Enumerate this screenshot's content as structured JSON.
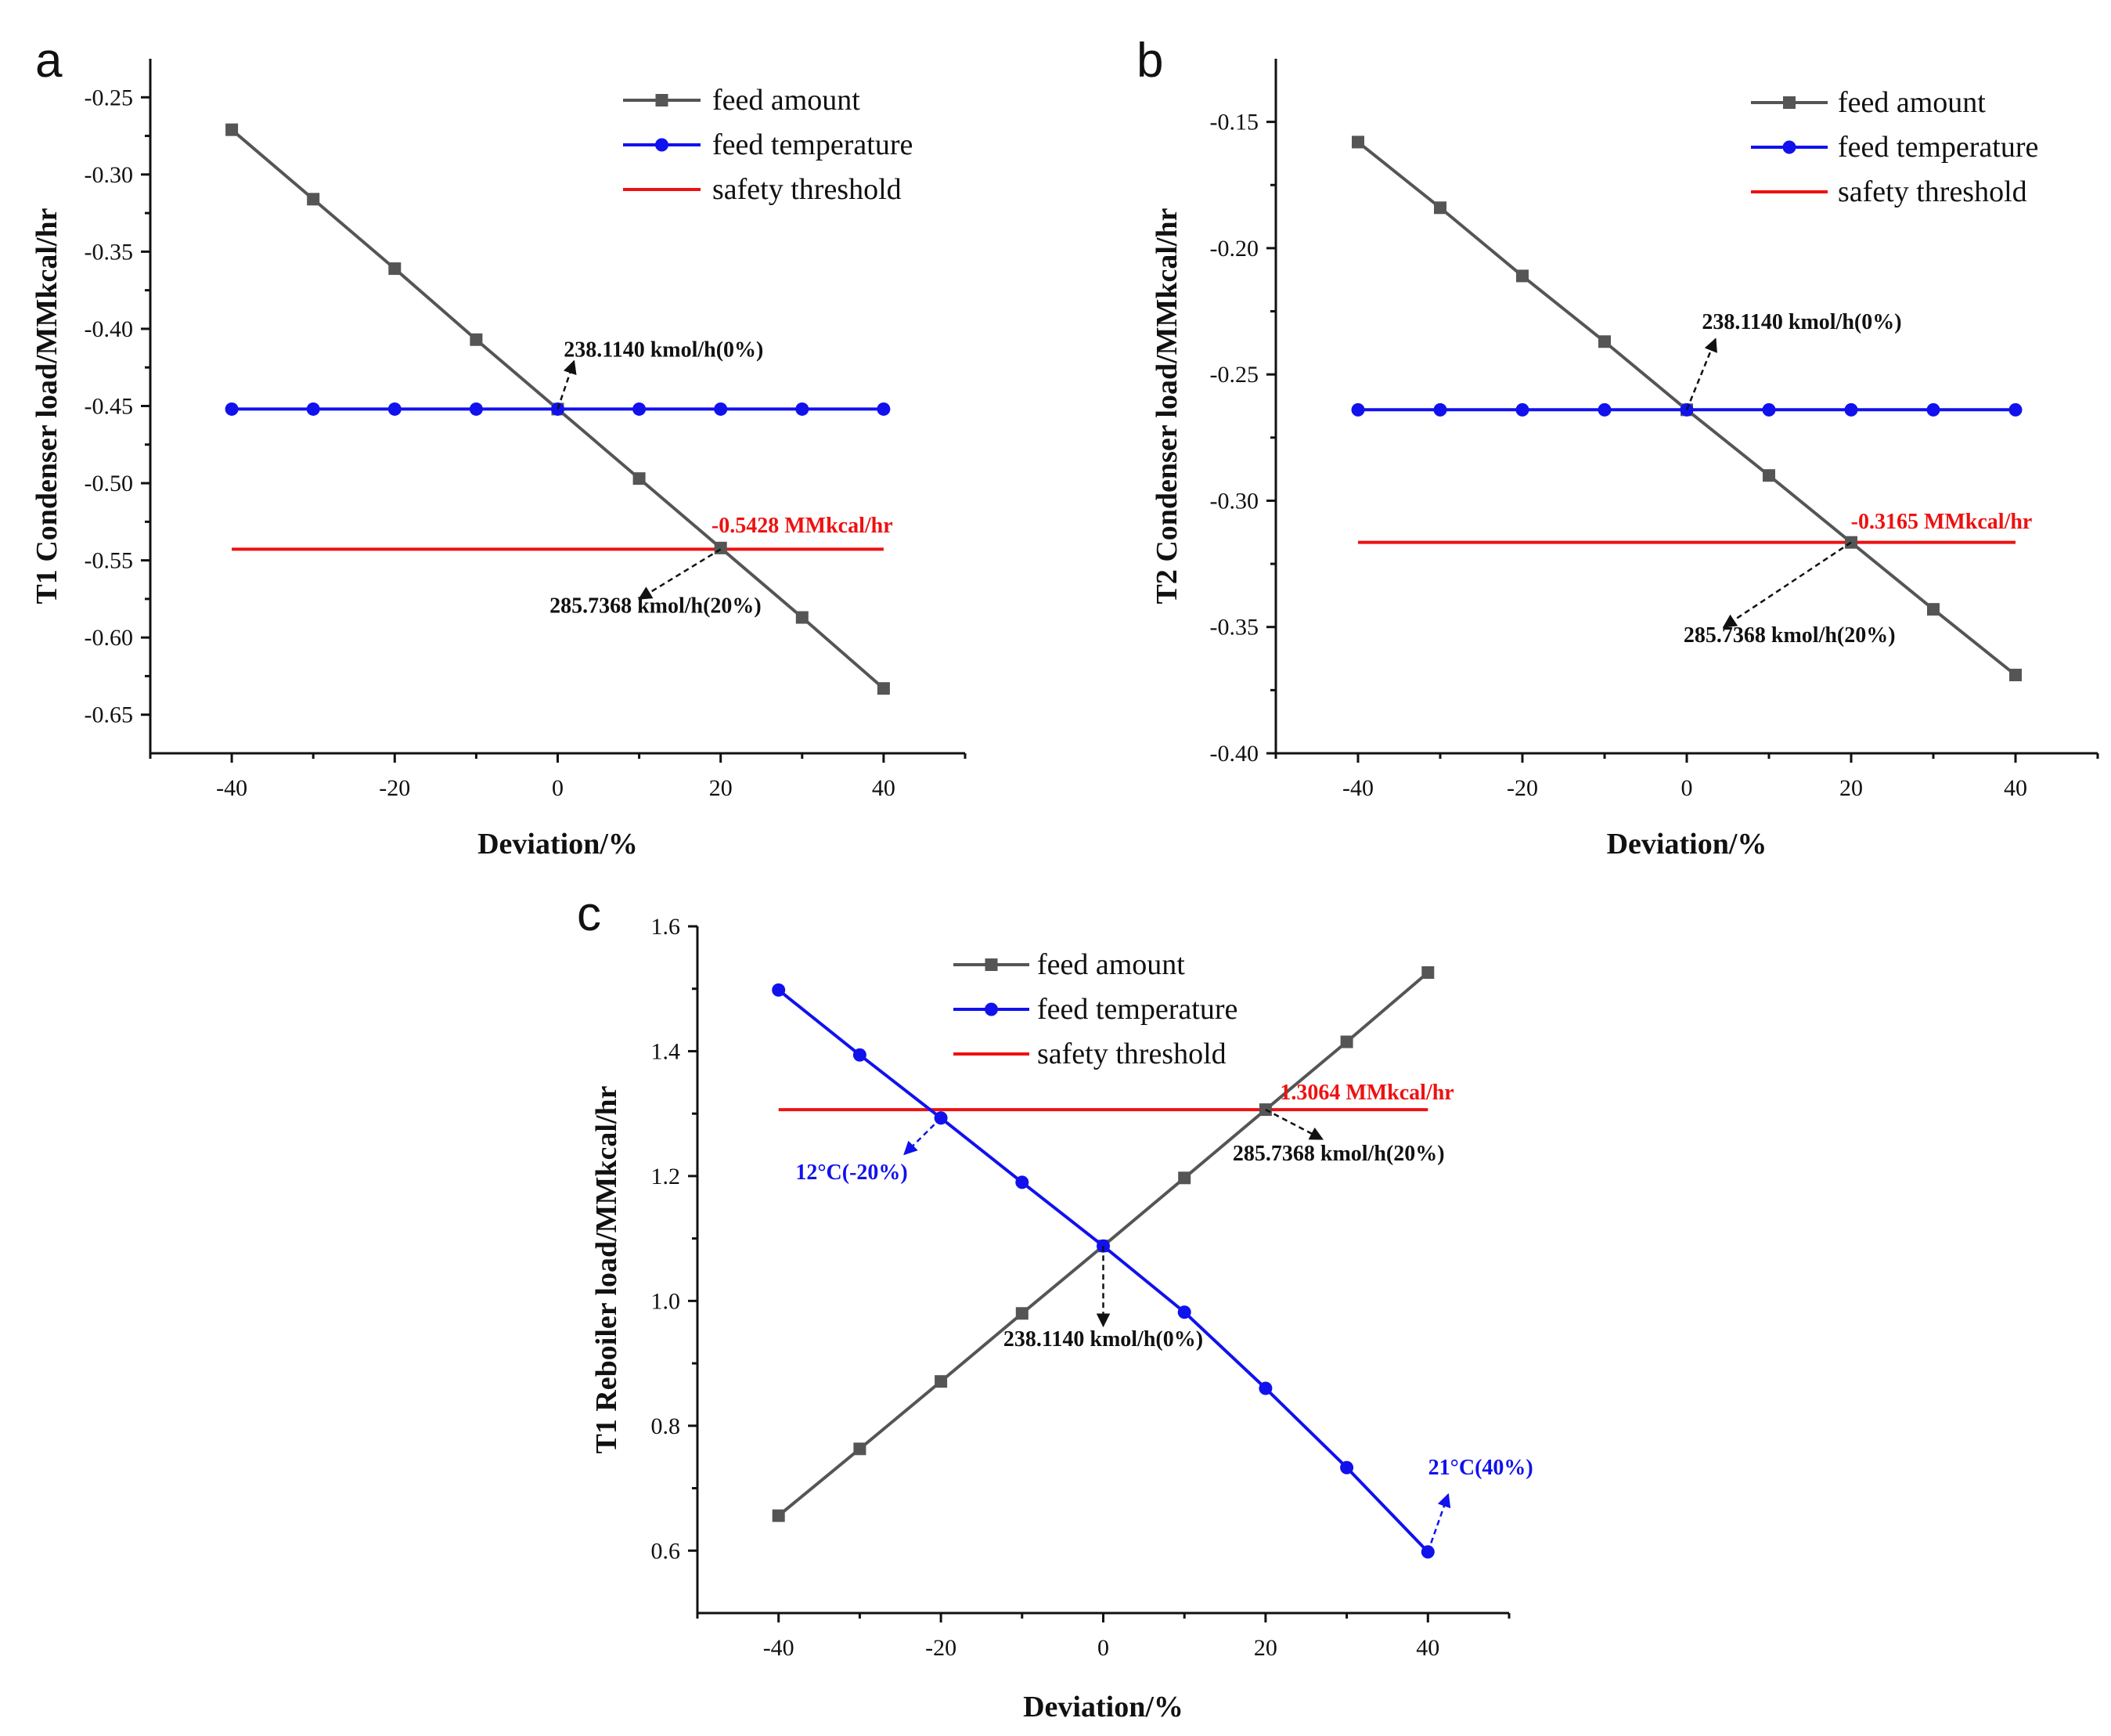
{
  "chart_data": [
    {
      "id": "a",
      "type": "line",
      "panel_label": "a",
      "xlabel": "Deviation/%",
      "ylabel": "T1 Condenser load/MMkcal/hr",
      "xlim": [
        -50,
        50
      ],
      "ylim": [
        -0.675,
        -0.225
      ],
      "xticks": [
        -40,
        -20,
        0,
        20,
        40
      ],
      "yticks": [
        -0.25,
        -0.3,
        -0.35,
        -0.4,
        -0.45,
        -0.5,
        -0.55,
        -0.6,
        -0.65
      ],
      "xtick_labels": [
        "-40",
        "-20",
        "0",
        "20",
        "40"
      ],
      "ytick_labels": [
        "-0.25",
        "-0.30",
        "-0.35",
        "-0.40",
        "-0.45",
        "-0.50",
        "-0.55",
        "-0.60",
        "-0.65"
      ],
      "x": [
        -40,
        -30,
        -20,
        -10,
        0,
        10,
        20,
        30,
        40
      ],
      "series": [
        {
          "name": "feed amount",
          "color": "#555555",
          "marker": "square",
          "values": [
            -0.271,
            -0.316,
            -0.361,
            -0.407,
            -0.452,
            -0.497,
            -0.542,
            -0.587,
            -0.633
          ]
        },
        {
          "name": "feed temperature",
          "color": "#1111ee",
          "marker": "circle",
          "values": [
            -0.452,
            -0.452,
            -0.452,
            -0.452,
            -0.452,
            -0.452,
            -0.452,
            -0.452,
            -0.452
          ]
        },
        {
          "name": "safety threshold",
          "color": "#ee1111",
          "marker": "none",
          "values": [
            -0.5428,
            -0.5428,
            -0.5428,
            -0.5428,
            -0.5428,
            -0.5428,
            -0.5428,
            -0.5428,
            -0.5428
          ]
        }
      ],
      "legend": [
        "feed amount",
        "feed temperature",
        "safety threshold"
      ],
      "legend_position": "top-right",
      "annotations": [
        {
          "text": "238.1140 kmol/h(0%)",
          "color": "#111111",
          "at": [
            0,
            -0.452
          ],
          "to": [
            2,
            -0.421
          ],
          "text_at": [
            13,
            -0.418
          ]
        },
        {
          "text": "-0.5428 MMkcal/hr",
          "color": "#ee1111",
          "at": null,
          "to": null,
          "text_at": [
            30,
            -0.532
          ]
        },
        {
          "text": "285.7368 kmol/h(20%)",
          "color": "#111111",
          "at": [
            20,
            -0.5428
          ],
          "to": [
            10,
            -0.575
          ],
          "text_at": [
            12,
            -0.584
          ]
        }
      ]
    },
    {
      "id": "b",
      "type": "line",
      "panel_label": "b",
      "xlabel": "Deviation/%",
      "ylabel": "T2 Condenser load/MMkcal/hr",
      "xlim": [
        -50,
        50
      ],
      "ylim": [
        -0.4,
        -0.125
      ],
      "xticks": [
        -40,
        -20,
        0,
        20,
        40
      ],
      "yticks": [
        -0.15,
        -0.2,
        -0.25,
        -0.3,
        -0.35,
        -0.4
      ],
      "xtick_labels": [
        "-40",
        "-20",
        "0",
        "20",
        "40"
      ],
      "ytick_labels": [
        "-0.15",
        "-0.20",
        "-0.25",
        "-0.30",
        "-0.35",
        "-0.40"
      ],
      "x": [
        -40,
        -30,
        -20,
        -10,
        0,
        10,
        20,
        30,
        40
      ],
      "series": [
        {
          "name": "feed amount",
          "color": "#555555",
          "marker": "square",
          "values": [
            -0.158,
            -0.184,
            -0.211,
            -0.237,
            -0.264,
            -0.29,
            -0.3165,
            -0.343,
            -0.369
          ]
        },
        {
          "name": "feed temperature",
          "color": "#1111ee",
          "marker": "circle",
          "values": [
            -0.264,
            -0.264,
            -0.264,
            -0.264,
            -0.264,
            -0.264,
            -0.264,
            -0.264,
            -0.264
          ]
        },
        {
          "name": "safety threshold",
          "color": "#ee1111",
          "marker": "none",
          "values": [
            -0.3165,
            -0.3165,
            -0.3165,
            -0.3165,
            -0.3165,
            -0.3165,
            -0.3165,
            -0.3165,
            -0.3165
          ]
        }
      ],
      "legend": [
        "feed amount",
        "feed temperature",
        "safety threshold"
      ],
      "legend_position": "top-right",
      "annotations": [
        {
          "text": "238.1140 kmol/h(0%)",
          "color": "#111111",
          "at": [
            0,
            -0.264
          ],
          "to": [
            3.5,
            -0.236
          ],
          "text_at": [
            14,
            -0.232
          ]
        },
        {
          "text": "-0.3165 MMkcal/hr",
          "color": "#ee1111",
          "at": null,
          "to": null,
          "text_at": [
            31,
            -0.311
          ]
        },
        {
          "text": "285.7368 kmol/h(20%)",
          "color": "#111111",
          "at": [
            20,
            -0.3165
          ],
          "to": [
            4.5,
            -0.35
          ],
          "text_at": [
            12.5,
            -0.356
          ]
        }
      ]
    },
    {
      "id": "c",
      "type": "line",
      "panel_label": "c",
      "xlabel": "Deviation/%",
      "ylabel": "T1 Reboiler load/MMkcal/hr",
      "xlim": [
        -50,
        50
      ],
      "ylim": [
        0.5,
        1.6
      ],
      "xticks": [
        -40,
        -20,
        0,
        20,
        40
      ],
      "yticks": [
        0.6,
        0.8,
        1.0,
        1.2,
        1.4,
        1.6
      ],
      "xtick_labels": [
        "-40",
        "-20",
        "0",
        "20",
        "40"
      ],
      "ytick_labels": [
        "0.6",
        "0.8",
        "1.0",
        "1.2",
        "1.4",
        "1.6"
      ],
      "x": [
        -40,
        -30,
        -20,
        -10,
        0,
        10,
        20,
        30,
        40
      ],
      "series": [
        {
          "name": "feed amount",
          "color": "#555555",
          "marker": "square",
          "values": [
            0.656,
            0.763,
            0.871,
            0.98,
            1.088,
            1.197,
            1.3064,
            1.415,
            1.526
          ]
        },
        {
          "name": "feed temperature",
          "color": "#1111ee",
          "marker": "circle",
          "values": [
            1.498,
            1.394,
            1.293,
            1.19,
            1.088,
            0.982,
            0.86,
            0.733,
            0.598
          ]
        },
        {
          "name": "safety threshold",
          "color": "#ee1111",
          "marker": "none",
          "values": [
            1.3064,
            1.3064,
            1.3064,
            1.3064,
            1.3064,
            1.3064,
            1.3064,
            1.3064,
            1.3064
          ]
        }
      ],
      "legend": [
        "feed amount",
        "feed temperature",
        "safety threshold"
      ],
      "legend_position": "top-center",
      "annotations": [
        {
          "text": "1.3064 MMkcal/hr",
          "color": "#ee1111",
          "at": null,
          "to": null,
          "text_at": [
            32.5,
            1.323
          ]
        },
        {
          "text": "285.7368 kmol/h(20%)",
          "color": "#111111",
          "at": [
            20,
            1.3064
          ],
          "to": [
            27,
            1.259
          ],
          "text_at": [
            29,
            1.225
          ]
        },
        {
          "text": "12°C(-20%)",
          "color": "#1111ee",
          "at": [
            -20,
            1.293
          ],
          "to": [
            -24.5,
            1.235
          ],
          "text_at": [
            -31,
            1.195
          ]
        },
        {
          "text": "238.1140 kmol/h(0%)",
          "color": "#111111",
          "at": [
            0,
            1.088
          ],
          "to": [
            0,
            0.96
          ],
          "text_at": [
            0,
            0.928
          ]
        },
        {
          "text": "21°C(40%)",
          "color": "#1111ee",
          "at": [
            40,
            0.598
          ],
          "to": [
            42.5,
            0.69
          ],
          "text_at": [
            46.5,
            0.722
          ]
        }
      ]
    }
  ]
}
